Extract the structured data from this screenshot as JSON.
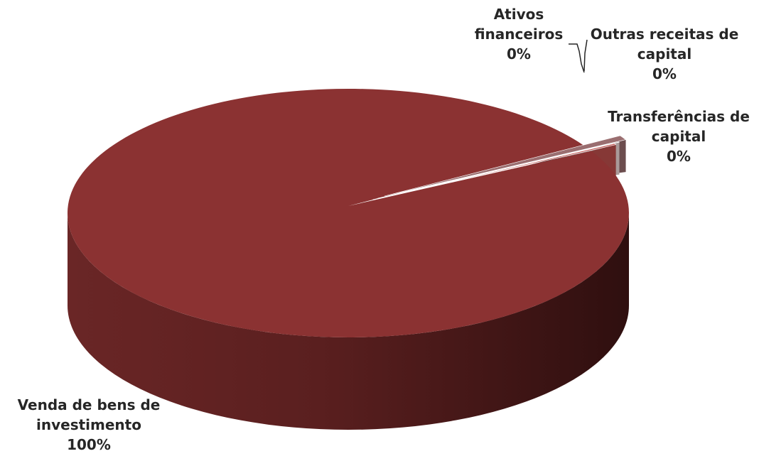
{
  "chart_data": {
    "type": "pie",
    "style": "3d",
    "title": "",
    "legend": "none",
    "slices": [
      {
        "label_lines": [
          "Venda de bens de",
          "investimento"
        ],
        "percent_label": "100%",
        "value": 99.2,
        "color": "#8B3232"
      },
      {
        "label_lines": [
          "Transferências de",
          "capital"
        ],
        "percent_label": "0%",
        "value": 0.6,
        "color": "#9A6E70"
      },
      {
        "label_lines": [
          "Outras receitas de",
          "capital"
        ],
        "percent_label": "0%",
        "value": 0.05,
        "color": "#F2DCDB"
      },
      {
        "label_lines": [
          "Ativos",
          "financeiros"
        ],
        "percent_label": "0%",
        "value": 0.15,
        "color": "#C0504D"
      }
    ]
  }
}
